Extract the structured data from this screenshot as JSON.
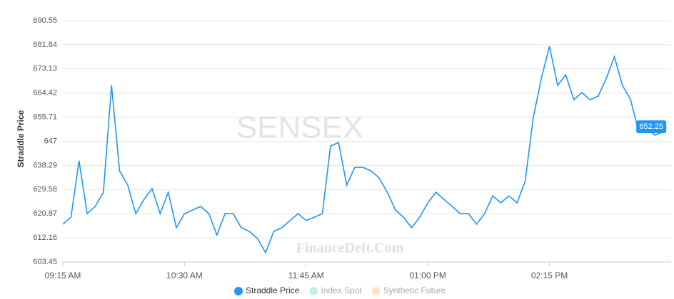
{
  "chart_data": {
    "type": "line",
    "y_label": "Straddle Price",
    "watermark": "SENSEX",
    "credit": "FinanceDeft.Com",
    "x": [
      "09:15 AM",
      "09:20 AM",
      "09:25 AM",
      "09:30 AM",
      "09:35 AM",
      "09:40 AM",
      "09:45 AM",
      "09:50 AM",
      "09:55 AM",
      "10:00 AM",
      "10:05 AM",
      "10:10 AM",
      "10:15 AM",
      "10:20 AM",
      "10:25 AM",
      "10:30 AM",
      "10:35 AM",
      "10:40 AM",
      "10:45 AM",
      "10:50 AM",
      "10:55 AM",
      "11:00 AM",
      "11:05 AM",
      "11:10 AM",
      "11:15 AM",
      "11:20 AM",
      "11:25 AM",
      "11:30 AM",
      "11:35 AM",
      "11:40 AM",
      "11:45 AM",
      "11:50 AM",
      "11:55 AM",
      "12:00 PM",
      "12:05 PM",
      "12:10 PM",
      "12:15 PM",
      "12:20 PM",
      "12:25 PM",
      "12:30 PM",
      "12:35 PM",
      "12:40 PM",
      "12:45 PM",
      "12:50 PM",
      "12:55 PM",
      "01:00 PM",
      "01:05 PM",
      "01:10 PM",
      "01:15 PM",
      "01:20 PM",
      "01:25 PM",
      "01:30 PM",
      "01:35 PM",
      "01:40 PM",
      "01:45 PM",
      "01:50 PM",
      "01:55 PM",
      "02:00 PM",
      "02:05 PM",
      "02:10 PM",
      "02:15 PM",
      "02:20 PM",
      "02:25 PM",
      "02:30 PM",
      "02:35 PM",
      "02:40 PM",
      "02:45 PM",
      "02:50 PM",
      "02:55 PM",
      "03:00 PM",
      "03:05 PM",
      "03:10 PM",
      "03:15 PM",
      "03:20 PM",
      "03:25 PM",
      "03:27 PM"
    ],
    "series": [
      {
        "name": "Straddle Price",
        "color": "#2196f3",
        "values": [
          617.1,
          619.6,
          640.0,
          620.9,
          623.5,
          628.6,
          667.2,
          636.3,
          631.2,
          620.9,
          626.0,
          629.9,
          620.9,
          628.6,
          615.8,
          620.9,
          622.2,
          623.5,
          620.9,
          613.2,
          620.9,
          620.9,
          615.8,
          614.5,
          611.9,
          606.8,
          614.5,
          615.8,
          618.4,
          620.9,
          618.4,
          619.6,
          620.9,
          645.3,
          646.6,
          631.2,
          637.6,
          637.6,
          636.3,
          633.8,
          628.6,
          622.2,
          619.6,
          615.8,
          619.6,
          624.8,
          628.6,
          626.0,
          623.5,
          620.9,
          620.9,
          617.1,
          620.9,
          627.3,
          624.8,
          627.3,
          624.8,
          632.5,
          655.6,
          669.7,
          681.3,
          667.2,
          671.0,
          662.0,
          664.6,
          662.0,
          663.3,
          669.7,
          677.5,
          667.2,
          662.0,
          650.5,
          651.8,
          649.2,
          650.5,
          652.25
        ]
      }
    ],
    "hidden_series": [
      {
        "name": "Index Spot",
        "color": "#c6efe0"
      },
      {
        "name": "Synthetic Future",
        "color": "#f7e6c8"
      }
    ],
    "xlim": [
      "09:15 AM",
      "03:30 PM"
    ],
    "xticks": [
      "09:15 AM",
      "10:30 AM",
      "11:45 AM",
      "01:00 PM",
      "02:15 PM"
    ],
    "ylim": [
      603.45,
      690.55
    ],
    "yticks": [
      603.45,
      612.16,
      620.87,
      629.58,
      638.29,
      647.0,
      655.71,
      664.42,
      673.13,
      681.84,
      690.55
    ],
    "grid": true
  }
}
